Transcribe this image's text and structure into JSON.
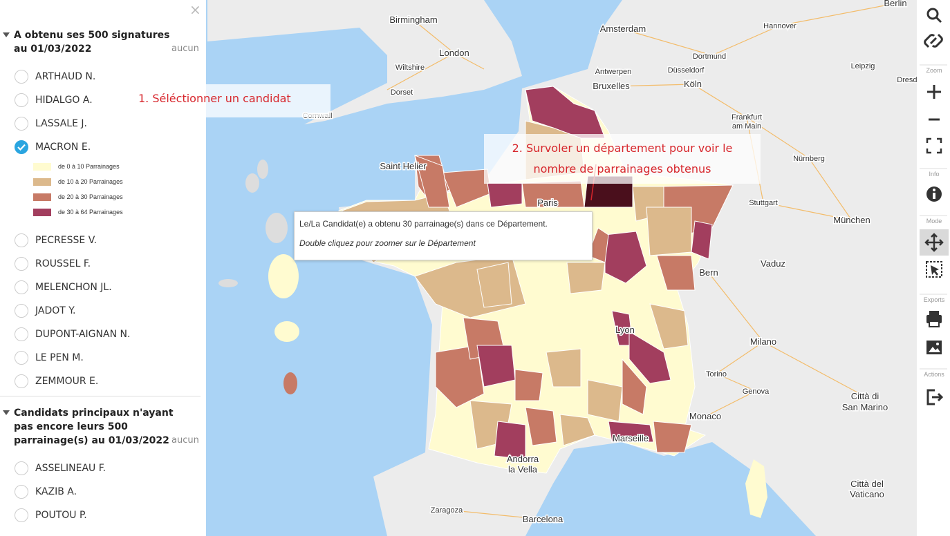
{
  "panel": {
    "close": "×",
    "groups": [
      {
        "title": "A obtenu ses 500 signatures au 01/03/2022",
        "none": "aucun",
        "candidates": [
          {
            "name": "ARTHAUD N.",
            "checked": false
          },
          {
            "name": "HIDALGO A.",
            "checked": false
          },
          {
            "name": "LASSALE J.",
            "checked": false
          },
          {
            "name": "MACRON E.",
            "checked": true
          },
          {
            "name": "PECRESSE V.",
            "checked": false
          },
          {
            "name": "ROUSSEL F.",
            "checked": false
          },
          {
            "name": "MELENCHON JL.",
            "checked": false
          },
          {
            "name": "JADOT Y.",
            "checked": false
          },
          {
            "name": "DUPONT-AIGNAN N.",
            "checked": false
          },
          {
            "name": "LE PEN M.",
            "checked": false
          },
          {
            "name": "ZEMMOUR E.",
            "checked": false
          }
        ]
      },
      {
        "title": "Candidats principaux n'ayant pas encore leurs 500 parrainage(s) au 01/03/2022",
        "none": "aucun",
        "candidates": [
          {
            "name": "ASSELINEAU F.",
            "checked": false
          },
          {
            "name": "KAZIB A.",
            "checked": false
          },
          {
            "name": "POUTOU P.",
            "checked": false
          }
        ]
      }
    ],
    "legend": [
      {
        "label": "de 0 à 10 Parrainages",
        "color": "#fffbd0"
      },
      {
        "label": "de 10 à 20 Parrainages",
        "color": "#dcb98c"
      },
      {
        "label": "de 20 à 30 Parrainages",
        "color": "#c77a66"
      },
      {
        "label": "de 30 à 64 Parrainages",
        "color": "#a23e5e"
      }
    ]
  },
  "map": {
    "cities": [
      "Birmingham",
      "Amsterdam",
      "Berlin",
      "Hannover",
      "London",
      "Dortmund",
      "Leipzig",
      "Wiltshire",
      "Antwerpen",
      "Düsseldorf",
      "Dresden",
      "Dorset",
      "Bruxelles",
      "Köln",
      "Cornwall",
      "Frankfurt",
      "am Main",
      "Nürnberg",
      "Saint Helier",
      "Paris",
      "Stuttgart",
      "München",
      "Vaduz",
      "Bern",
      "Milano",
      "Lyon",
      "Torino",
      "Genova",
      "Città di",
      "San Marino",
      "Monaco",
      "Marseille",
      "Andorra",
      "la Vella",
      "Zaragoza",
      "Barcelona",
      "Città del",
      "Vaticano"
    ]
  },
  "annotations": {
    "step1": "1. Séléctionner un candidat",
    "step2": [
      "2. Survoler un département pour voir le",
      "nombre de parrainages obtenus"
    ]
  },
  "tooltip": {
    "line1": "Le/La Candidat(e) a obtenu 30 parrainage(s) dans ce Département.",
    "line2": "Double cliquez pour zoomer sur le Département"
  },
  "toolbar": {
    "sections": [
      "Zoom",
      "Info",
      "Mode",
      "Exports",
      "Actions"
    ]
  }
}
